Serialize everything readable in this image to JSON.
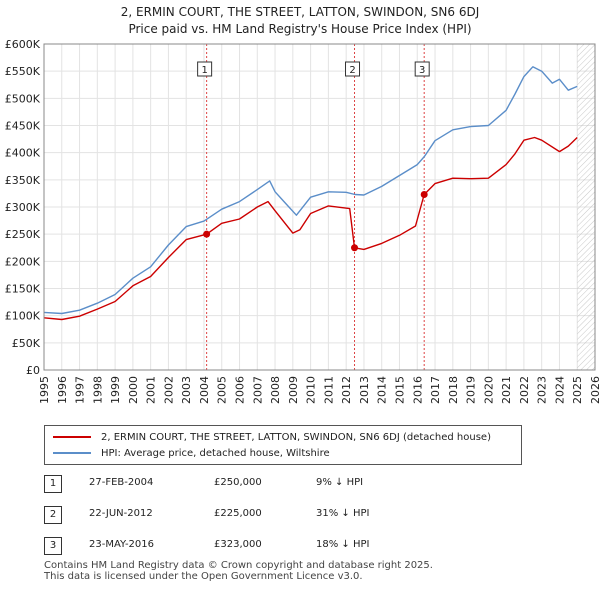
{
  "title_line1": "2, ERMIN COURT, THE STREET, LATTON, SWINDON, SN6 6DJ",
  "title_line2": "Price paid vs. HM Land Registry's House Price Index (HPI)",
  "chart_data": {
    "type": "line",
    "title": "2, ERMIN COURT, THE STREET, LATTON, SWINDON, SN6 6DJ — Price paid vs. HM Land Registry's House Price Index (HPI)",
    "xlabel": "",
    "ylabel": "",
    "xlim": [
      1995,
      2026
    ],
    "ylim": [
      0,
      600000
    ],
    "grid": true,
    "x_ticks": [
      "1995",
      "1996",
      "1997",
      "1998",
      "1999",
      "2000",
      "2001",
      "2002",
      "2003",
      "2004",
      "2005",
      "2006",
      "2007",
      "2008",
      "2009",
      "2010",
      "2011",
      "2012",
      "2013",
      "2014",
      "2015",
      "2016",
      "2017",
      "2018",
      "2019",
      "2020",
      "2021",
      "2022",
      "2023",
      "2024",
      "2025",
      "2026"
    ],
    "y_ticks": [
      "£0",
      "£50K",
      "£100K",
      "£150K",
      "£200K",
      "£250K",
      "£300K",
      "£350K",
      "£400K",
      "£450K",
      "£500K",
      "£550K",
      "£600K"
    ],
    "series": [
      {
        "name": "2, ERMIN COURT, THE STREET, LATTON, SWINDON, SN6 6DJ (detached house)",
        "color": "#cc0000",
        "x": [
          1995.0,
          1996.0,
          1997.0,
          1998.0,
          1999.0,
          2000.0,
          2001.0,
          2002.0,
          2003.0,
          2004.15,
          2005.0,
          2006.0,
          2007.0,
          2007.6,
          2008.0,
          2009.0,
          2009.4,
          2010.0,
          2011.0,
          2012.2,
          2012.47,
          2013.0,
          2014.0,
          2015.0,
          2015.9,
          2016.39,
          2017.0,
          2018.0,
          2019.0,
          2020.0,
          2021.0,
          2021.5,
          2022.0,
          2022.6,
          2023.0,
          2024.0,
          2024.5,
          2025.0
        ],
        "values": [
          96000,
          93000,
          99000,
          112000,
          126000,
          155000,
          172000,
          207000,
          240000,
          250000,
          270000,
          278000,
          300000,
          310000,
          293000,
          252000,
          258000,
          288000,
          302000,
          297000,
          225000,
          222000,
          233000,
          248000,
          265000,
          323000,
          343000,
          353000,
          352000,
          353000,
          378000,
          398000,
          423000,
          428000,
          423000,
          402000,
          412000,
          428000
        ]
      },
      {
        "name": "HPI: Average price, detached house, Wiltshire",
        "color": "#5b8ec9",
        "x": [
          1995.0,
          1996.0,
          1997.0,
          1998.0,
          1999.0,
          2000.0,
          2001.0,
          2002.0,
          2003.0,
          2004.0,
          2005.0,
          2006.0,
          2007.0,
          2007.7,
          2008.0,
          2008.5,
          2009.2,
          2010.0,
          2011.0,
          2012.0,
          2012.5,
          2013.0,
          2014.0,
          2015.0,
          2016.0,
          2016.4,
          2017.0,
          2018.0,
          2019.0,
          2020.0,
          2021.0,
          2021.5,
          2022.0,
          2022.5,
          2023.0,
          2023.6,
          2024.0,
          2024.5,
          2025.0
        ],
        "values": [
          106000,
          104000,
          110000,
          123000,
          139000,
          169000,
          190000,
          230000,
          264000,
          274000,
          296000,
          310000,
          332000,
          348000,
          328000,
          310000,
          285000,
          318000,
          328000,
          327000,
          323000,
          322000,
          338000,
          358000,
          378000,
          393000,
          422000,
          442000,
          448000,
          450000,
          478000,
          508000,
          540000,
          558000,
          550000,
          528000,
          535000,
          515000,
          522000
        ]
      }
    ],
    "annotations": [
      {
        "label": "1",
        "x": 2004.15,
        "value": 250000
      },
      {
        "label": "2",
        "x": 2012.47,
        "value": 225000
      },
      {
        "label": "3",
        "x": 2016.39,
        "value": 323000
      }
    ],
    "shaded_region_from": 2025.0
  },
  "legend": {
    "property_label": "2, ERMIN COURT, THE STREET, LATTON, SWINDON, SN6 6DJ (detached house)",
    "hpi_label": "HPI: Average price, detached house, Wiltshire"
  },
  "sales": [
    {
      "num": "1",
      "date": "27-FEB-2004",
      "price": "£250,000",
      "delta": "9% ↓ HPI"
    },
    {
      "num": "2",
      "date": "22-JUN-2012",
      "price": "£225,000",
      "delta": "31% ↓ HPI"
    },
    {
      "num": "3",
      "date": "23-MAY-2016",
      "price": "£323,000",
      "delta": "18% ↓ HPI"
    }
  ],
  "footer": {
    "line1": "Contains HM Land Registry data © Crown copyright and database right 2025.",
    "line2": "This data is licensed under the Open Government Licence v3.0."
  }
}
